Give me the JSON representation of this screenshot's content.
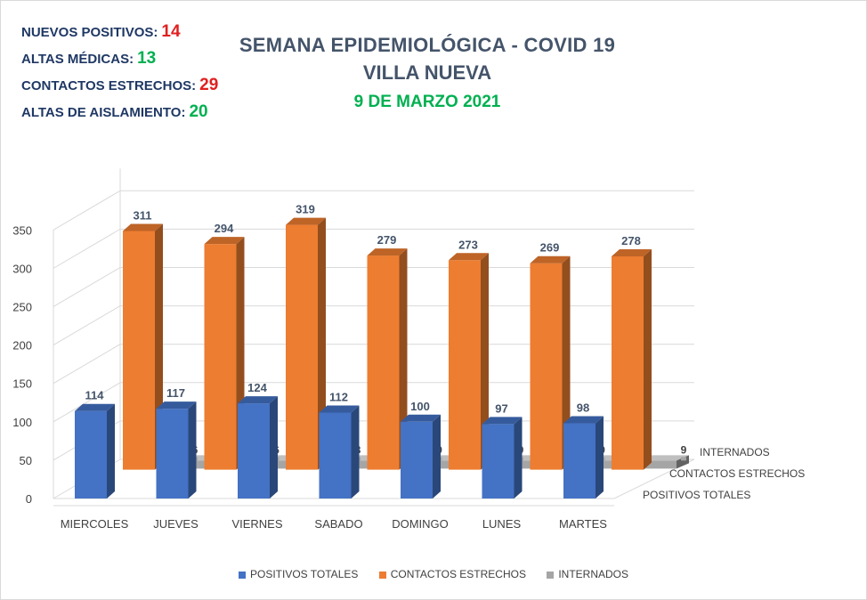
{
  "stats": [
    {
      "label": "NUEVOS POSITIVOS:",
      "value": "14",
      "color": "#e02020"
    },
    {
      "label": "ALTAS MÉDICAS:",
      "value": "13",
      "color": "#00b050"
    },
    {
      "label": "CONTACTOS ESTRECHOS:",
      "value": "29",
      "color": "#e02020"
    },
    {
      "label": "ALTAS DE AISLAMIENTO:",
      "value": "20",
      "color": "#00b050"
    }
  ],
  "header": {
    "title": "SEMANA EPIDEMIOLÓGICA - COVID 19",
    "subtitle": "VILLA NUEVA",
    "date": "9 DE MARZO 2021"
  },
  "chart_data": {
    "type": "bar",
    "categories": [
      "MIERCOLES",
      "JUEVES",
      "VIERNES",
      "SABADO",
      "DOMINGO",
      "LUNES",
      "MARTES"
    ],
    "series": [
      {
        "name": "POSITIVOS TOTALES",
        "values": [
          114,
          117,
          124,
          112,
          100,
          97,
          98
        ],
        "color": "#4472c4"
      },
      {
        "name": "CONTACTOS ESTRECHOS",
        "values": [
          311,
          294,
          319,
          279,
          273,
          269,
          278
        ],
        "color": "#ed7d31"
      },
      {
        "name": "INTERNADOS",
        "values": [
          6,
          6,
          8,
          9,
          9,
          9,
          9
        ],
        "color": "#a5a5a5"
      }
    ],
    "y_ticks": [
      "0",
      "50",
      "100",
      "150",
      "200",
      "250",
      "300",
      "350"
    ],
    "ylim": [
      0,
      350
    ],
    "depth_labels": [
      "INTERNADOS",
      "CONTACTOS ESTRECHOS",
      "POSITIVOS TOTALES"
    ],
    "grid": true,
    "legend_position": "bottom"
  }
}
